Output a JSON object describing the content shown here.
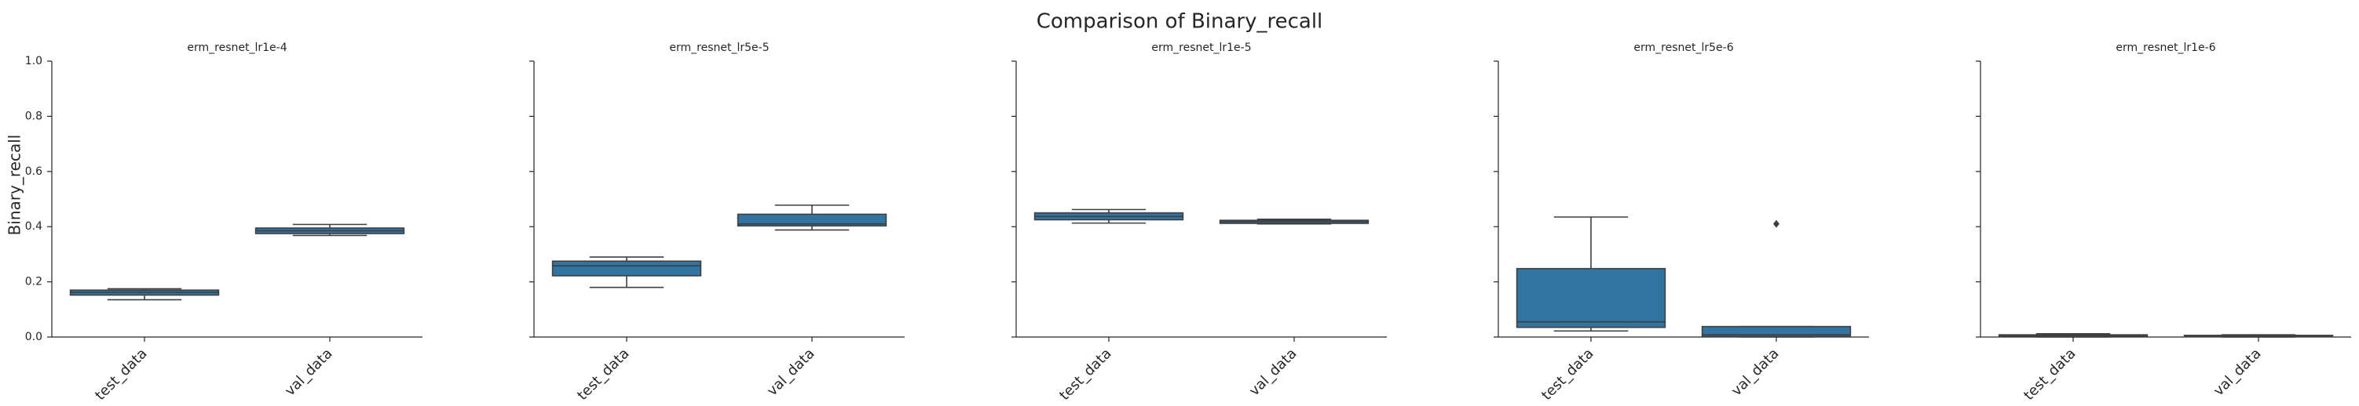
{
  "chart_data": {
    "type": "box",
    "title": "Comparison of Binary_recall",
    "ylabel": "Binary_recall",
    "xlabel": "",
    "ylim": [
      0,
      1.0
    ],
    "yticks": [
      "0.0",
      "0.2",
      "0.4",
      "0.6",
      "0.8",
      "1.0"
    ],
    "categories": [
      "test_data",
      "val_data"
    ],
    "box_color": "#3274a1",
    "line_color": "#3f3f3f",
    "panels": [
      {
        "title": "erm_resnet_lr1e-4",
        "boxes": [
          {
            "category": "test_data",
            "whislo": 0.135,
            "q1": 0.152,
            "med": 0.162,
            "q3": 0.17,
            "whishi": 0.175,
            "fliers": []
          },
          {
            "category": "val_data",
            "whislo": 0.368,
            "q1": 0.375,
            "med": 0.385,
            "q3": 0.395,
            "whishi": 0.408,
            "fliers": []
          }
        ]
      },
      {
        "title": "erm_resnet_lr5e-5",
        "boxes": [
          {
            "category": "test_data",
            "whislo": 0.18,
            "q1": 0.222,
            "med": 0.258,
            "q3": 0.275,
            "whishi": 0.29,
            "fliers": []
          },
          {
            "category": "val_data",
            "whislo": 0.388,
            "q1": 0.403,
            "med": 0.41,
            "q3": 0.445,
            "whishi": 0.478,
            "fliers": []
          }
        ]
      },
      {
        "title": "erm_resnet_lr1e-5",
        "boxes": [
          {
            "category": "test_data",
            "whislo": 0.413,
            "q1": 0.425,
            "med": 0.437,
            "q3": 0.45,
            "whishi": 0.462,
            "fliers": []
          },
          {
            "category": "val_data",
            "whislo": 0.41,
            "q1": 0.412,
            "med": 0.418,
            "q3": 0.423,
            "whishi": 0.427,
            "fliers": []
          }
        ]
      },
      {
        "title": "erm_resnet_lr5e-6",
        "boxes": [
          {
            "category": "test_data",
            "whislo": 0.022,
            "q1": 0.035,
            "med": 0.055,
            "q3": 0.248,
            "whishi": 0.435,
            "fliers": []
          },
          {
            "category": "val_data",
            "whislo": 0.0,
            "q1": 0.002,
            "med": 0.008,
            "q3": 0.038,
            "whishi": 0.038,
            "fliers": [
              0.41
            ]
          }
        ]
      },
      {
        "title": "erm_resnet_lr1e-6",
        "boxes": [
          {
            "category": "test_data",
            "whislo": 0.0,
            "q1": 0.002,
            "med": 0.004,
            "q3": 0.008,
            "whishi": 0.012,
            "fliers": []
          },
          {
            "category": "val_data",
            "whislo": 0.0,
            "q1": 0.001,
            "med": 0.003,
            "q3": 0.006,
            "whishi": 0.008,
            "fliers": []
          }
        ]
      }
    ]
  }
}
